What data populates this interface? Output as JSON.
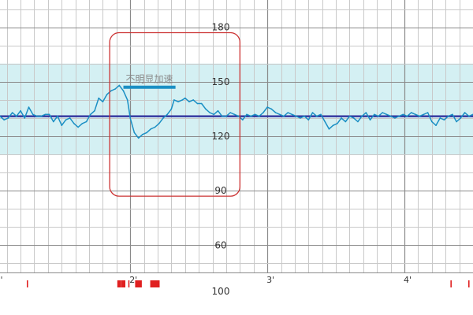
{
  "chart_data": {
    "type": "line",
    "x_unit_label": "'",
    "xlim": [
      1.05,
      4.5
    ],
    "ylim": [
      45,
      195
    ],
    "y_ticks": [
      60,
      90,
      120,
      150,
      180
    ],
    "y_tick_labels": [
      "60",
      "90",
      "120",
      "150",
      "180"
    ],
    "x_ticks": [
      2,
      3,
      4
    ],
    "x_tick_labels": [
      "2'",
      "3'",
      "4'"
    ],
    "bottom_label": "100",
    "grid": true,
    "normal_band": {
      "from": 110,
      "to": 160,
      "color": "#d4f0f3"
    },
    "baseline": {
      "value": 131,
      "color": "#2a2a9a"
    },
    "accent_color": "#1a8fc4",
    "series": [
      {
        "color": "#1a8fc4",
        "x": [
          1.05,
          1.08,
          1.11,
          1.14,
          1.17,
          1.2,
          1.23,
          1.26,
          1.29,
          1.32,
          1.35,
          1.38,
          1.41,
          1.44,
          1.47,
          1.5,
          1.53,
          1.56,
          1.59,
          1.62,
          1.65,
          1.68,
          1.71,
          1.74,
          1.77,
          1.8,
          1.83,
          1.86,
          1.89,
          1.92,
          1.95,
          1.98,
          2.0,
          2.03,
          2.06,
          2.09,
          2.12,
          2.15,
          2.18,
          2.21,
          2.24,
          2.27,
          2.3,
          2.32,
          2.35,
          2.38,
          2.4,
          2.43,
          2.46,
          2.49,
          2.52,
          2.55,
          2.58,
          2.61,
          2.64,
          2.67,
          2.7,
          2.73,
          2.76,
          2.79,
          2.82,
          2.85,
          2.88,
          2.91,
          2.94,
          2.97,
          3.0,
          3.03,
          3.06,
          3.09,
          3.12,
          3.15,
          3.18,
          3.21,
          3.24,
          3.27,
          3.3,
          3.33,
          3.36,
          3.39,
          3.42,
          3.45,
          3.48,
          3.51,
          3.54,
          3.57,
          3.6,
          3.63,
          3.66,
          3.69,
          3.72,
          3.75,
          3.78,
          3.81,
          3.84,
          3.87,
          3.9,
          3.93,
          3.96,
          3.99,
          4.02,
          4.05,
          4.08,
          4.11,
          4.14,
          4.17,
          4.2,
          4.23,
          4.26,
          4.29,
          4.32,
          4.35,
          4.38,
          4.41,
          4.44,
          4.47,
          4.5
        ],
        "y": [
          131,
          129,
          130,
          133,
          131,
          134,
          130,
          136,
          132,
          131,
          131,
          132,
          132,
          128,
          131,
          126,
          129,
          130,
          127,
          125,
          127,
          128,
          132,
          134,
          141,
          139,
          143,
          145,
          146,
          148,
          145,
          140,
          130,
          122,
          119,
          121,
          122,
          124,
          125,
          127,
          130,
          132,
          135,
          140,
          139,
          140,
          141,
          139,
          140,
          138,
          138,
          135,
          133,
          132,
          134,
          131,
          131,
          133,
          132,
          131,
          129,
          132,
          131,
          132,
          131,
          133,
          136,
          135,
          133,
          132,
          131,
          133,
          132,
          131,
          130,
          131,
          129,
          133,
          131,
          132,
          128,
          124,
          126,
          127,
          130,
          128,
          131,
          130,
          128,
          131,
          133,
          129,
          132,
          131,
          133,
          132,
          131,
          130,
          131,
          132,
          131,
          133,
          132,
          131,
          132,
          133,
          128,
          126,
          130,
          129,
          131,
          132,
          128,
          130,
          133,
          131,
          132
        ]
      }
    ],
    "annotation": {
      "label": "不明显加速",
      "x_start": 1.95,
      "x_end": 2.33,
      "value": 147,
      "box": {
        "x_start": 1.85,
        "x_end": 2.8,
        "y_bottom": 87,
        "y_top": 177,
        "color": "#cc3333"
      }
    },
    "markers": {
      "color": "#e02020",
      "items": [
        {
          "x": 1.25,
          "kind": "tick"
        },
        {
          "x": 1.92,
          "kind": "block"
        },
        {
          "x": 1.95,
          "kind": "block"
        },
        {
          "x": 1.99,
          "kind": "tick"
        },
        {
          "x": 2.05,
          "kind": "block"
        },
        {
          "x": 2.07,
          "kind": "block"
        },
        {
          "x": 2.16,
          "kind": "block"
        },
        {
          "x": 2.18,
          "kind": "block"
        },
        {
          "x": 2.2,
          "kind": "block"
        },
        {
          "x": 4.34,
          "kind": "tick"
        },
        {
          "x": 4.47,
          "kind": "tick"
        }
      ]
    }
  }
}
